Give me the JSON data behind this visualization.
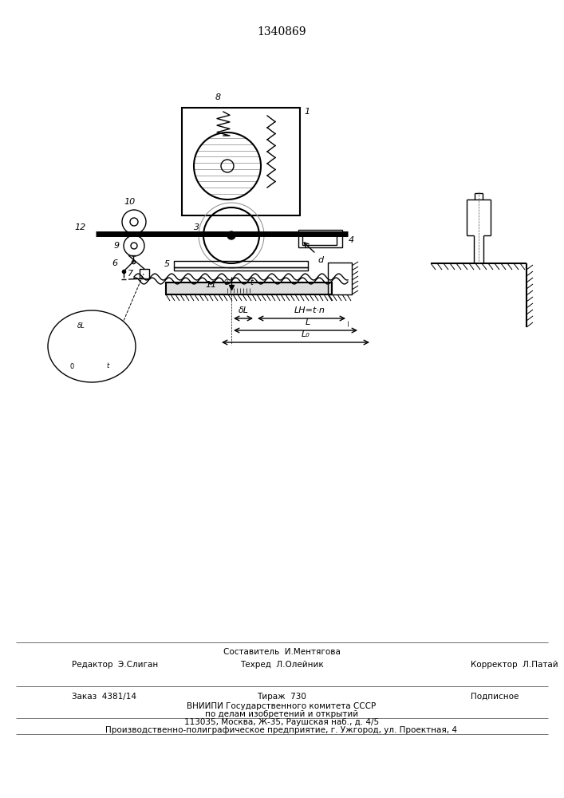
{
  "title": "1340869",
  "bg_color": "#ffffff",
  "line_color": "#000000",
  "hatch_color": "#000000",
  "title_fontsize": 10,
  "label_fontsize": 8,
  "footer_lines": [
    [
      "Редактор  Э.Слиган",
      "Составитель  И.Ментягова",
      ""
    ],
    [
      "",
      "Техред  Л.Олейник",
      "Корректор  Л.Патай"
    ],
    [
      "Заказ  4381/14",
      "Тираж  730",
      "Подписное"
    ],
    [
      "",
      "ВНИИПИ Государственного комитета СССР",
      ""
    ],
    [
      "",
      "по делам изобретений и открытий",
      ""
    ],
    [
      "",
      "113035, Москва, Ж-35, Раушская наб., д. 4/5",
      ""
    ],
    [
      "Производственно-полиграфическое предприятие, г. Ужгород, ул. Проектная, 4",
      "",
      ""
    ]
  ]
}
